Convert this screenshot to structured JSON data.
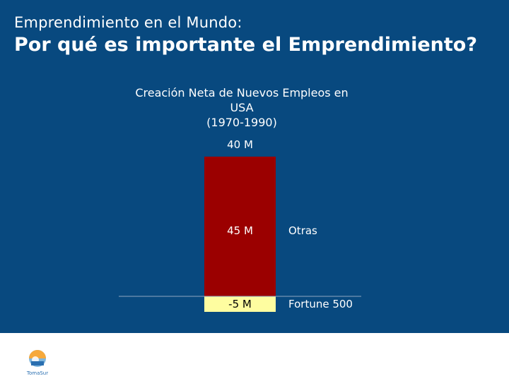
{
  "header": {
    "line1": "Emprendimiento en el Mundo:",
    "line2": "Por qué es importante el Emprendimiento?"
  },
  "chart_data": {
    "type": "bar",
    "title_lines": [
      "Creación Neta de Nuevos Empleos en",
      "USA",
      "(1970-1990)"
    ],
    "total_label": "40 M",
    "segments": [
      {
        "name": "Otras",
        "value": 45,
        "label": "45 M"
      },
      {
        "name": "Fortune 500",
        "value": -5,
        "label": "-5 M"
      }
    ],
    "total": 40,
    "ylim": [
      -5,
      45
    ],
    "grid": false,
    "colors": {
      "Otras": "#9b0000",
      "Fortune 500": "#fefda0",
      "axis": "#8fa7c0",
      "text": "#ffffff",
      "neg_text": "#000000"
    }
  },
  "logo": {
    "name": "company-logo",
    "text": "TomaSur"
  },
  "colors": {
    "background": "#08497f",
    "footer": "#ffffff"
  }
}
